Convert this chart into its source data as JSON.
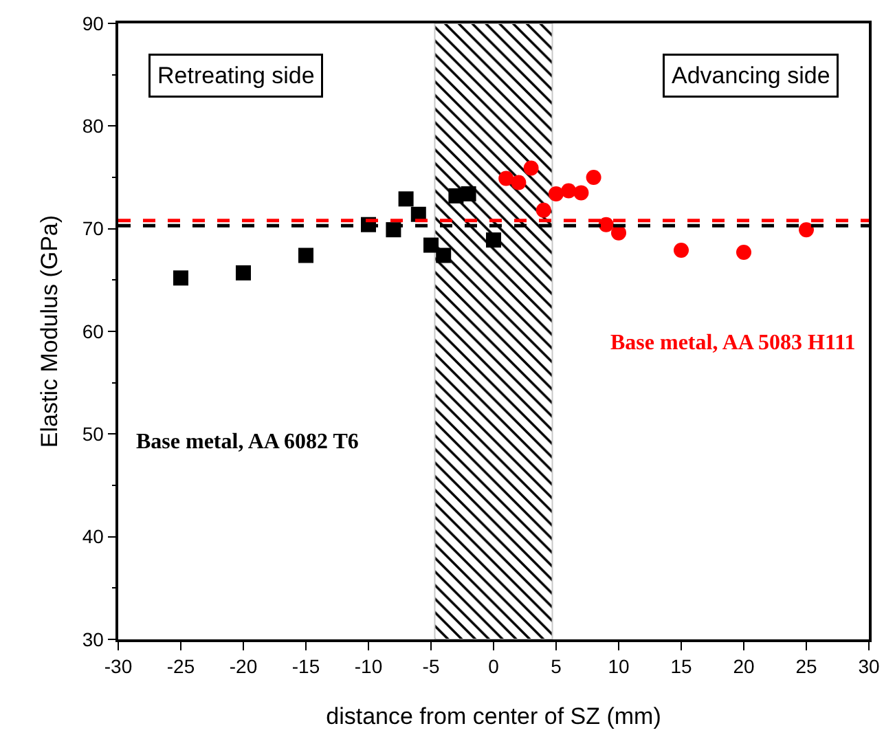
{
  "chart_data": {
    "type": "scatter",
    "xlabel": "distance from center of SZ (mm)",
    "ylabel": "Elastic Modulus (GPa)",
    "xlim": [
      -30,
      30
    ],
    "xticks": [
      -30,
      -25,
      -20,
      -15,
      -10,
      -5,
      0,
      5,
      10,
      15,
      20,
      25,
      30
    ],
    "ylim": [
      30,
      90
    ],
    "yticks": [
      30,
      40,
      50,
      60,
      70,
      80,
      90
    ],
    "grid": false,
    "series": [
      {
        "color": "#000000",
        "marker": "square",
        "x": [
          -25,
          -20,
          -15,
          -10,
          -8,
          -7,
          -6,
          -5,
          -4,
          -3,
          -2,
          0
        ],
        "values": [
          65.2,
          65.7,
          67.4,
          70.4,
          69.9,
          72.9,
          71.4,
          68.4,
          67.4,
          73.2,
          73.4,
          68.9
        ]
      },
      {
        "color": "#ff0000",
        "marker": "circle",
        "x": [
          1,
          2,
          3,
          4,
          5,
          6,
          7,
          8,
          9,
          10,
          15,
          20,
          25
        ],
        "values": [
          74.9,
          74.5,
          75.9,
          71.8,
          73.4,
          73.7,
          73.5,
          75.0,
          70.4,
          69.6,
          67.9,
          67.7,
          69.9
        ]
      }
    ],
    "ref_lines": [
      {
        "axis": "y",
        "value": 70.3,
        "label": "Base metal, AA 6082 T6",
        "color": "#000000",
        "line_style": "dashed"
      },
      {
        "axis": "y",
        "value": 70.8,
        "label": "Base metal, AA 5083 H111",
        "color": "#ff0000",
        "line_style": "dashed"
      }
    ],
    "bands": [
      {
        "axis": "x",
        "from": -4.7,
        "to": 4.7,
        "color": "#000000"
      }
    ],
    "annotations": [
      "Retreating side",
      "Advancing side"
    ]
  }
}
